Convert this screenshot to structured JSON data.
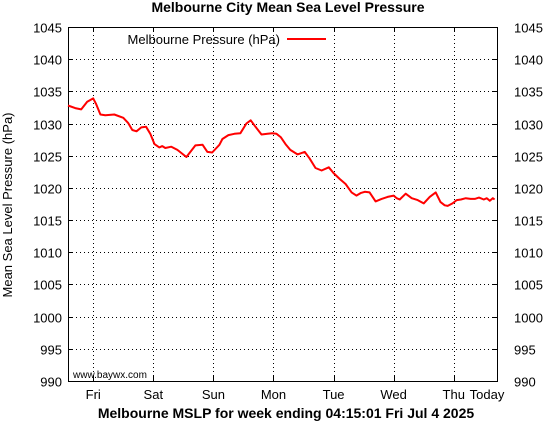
{
  "chart_data": {
    "type": "line",
    "title": "Melbourne City Mean Sea Level Pressure",
    "xlabel": "Melbourne MSLP for week ending 04:15:01 Fri Jul 4 2025",
    "ylabel": "Mean Sea Level Pressure (hPa)",
    "credit": "www.baywx.com",
    "ylim": [
      990,
      1045
    ],
    "xlim": [
      -0.42,
      6.72
    ],
    "grid": true,
    "legend_position": "top-left",
    "x_ticks": [
      {
        "label": "Fri",
        "x": 0
      },
      {
        "label": "Sat",
        "x": 1
      },
      {
        "label": "Sun",
        "x": 2
      },
      {
        "label": "Mon",
        "x": 3
      },
      {
        "label": "Tue",
        "x": 4
      },
      {
        "label": "Wed",
        "x": 5
      },
      {
        "label": "Thu",
        "x": 6
      },
      {
        "label": "Today",
        "x": 7
      }
    ],
    "y_ticks": [
      990,
      995,
      1000,
      1005,
      1010,
      1015,
      1020,
      1025,
      1030,
      1035,
      1040,
      1045
    ],
    "series": [
      {
        "name": "Melbourne Pressure (hPa)",
        "color": "#ff0000",
        "x": [
          -0.42,
          -0.3,
          -0.2,
          -0.1,
          0.0,
          0.05,
          0.12,
          0.2,
          0.35,
          0.5,
          0.58,
          0.65,
          0.72,
          0.8,
          0.88,
          0.95,
          1.02,
          1.1,
          1.15,
          1.2,
          1.3,
          1.4,
          1.55,
          1.7,
          1.82,
          1.9,
          1.98,
          2.05,
          2.1,
          2.15,
          2.25,
          2.35,
          2.45,
          2.55,
          2.62,
          2.7,
          2.8,
          2.9,
          2.98,
          3.05,
          3.12,
          3.2,
          3.28,
          3.4,
          3.52,
          3.6,
          3.7,
          3.8,
          3.92,
          4.0,
          4.1,
          4.2,
          4.3,
          4.38,
          4.45,
          4.52,
          4.6,
          4.7,
          4.8,
          4.9,
          5.0,
          5.05,
          5.1,
          5.2,
          5.3,
          5.4,
          5.5,
          5.6,
          5.7,
          5.78,
          5.85,
          5.9,
          5.98,
          6.05,
          6.12,
          6.2,
          6.28,
          6.35,
          6.42,
          6.5,
          6.55,
          6.6,
          6.65,
          6.68
        ],
        "values": [
          1032.8,
          1032.4,
          1032.2,
          1033.4,
          1033.9,
          1033.0,
          1031.4,
          1031.3,
          1031.4,
          1030.9,
          1030.1,
          1029.0,
          1028.8,
          1029.4,
          1029.5,
          1028.4,
          1026.8,
          1026.3,
          1026.5,
          1026.2,
          1026.4,
          1025.9,
          1024.8,
          1026.6,
          1026.7,
          1025.6,
          1025.5,
          1026.2,
          1026.7,
          1027.6,
          1028.2,
          1028.4,
          1028.5,
          1030.0,
          1030.5,
          1029.5,
          1028.3,
          1028.4,
          1028.5,
          1028.4,
          1027.9,
          1026.8,
          1025.9,
          1025.2,
          1025.6,
          1024.6,
          1023.1,
          1022.7,
          1023.2,
          1022.3,
          1021.4,
          1020.6,
          1019.3,
          1018.8,
          1019.2,
          1019.4,
          1019.3,
          1017.9,
          1018.3,
          1018.6,
          1018.8,
          1018.4,
          1018.2,
          1019.1,
          1018.4,
          1018.1,
          1017.6,
          1018.6,
          1019.3,
          1017.8,
          1017.3,
          1017.2,
          1017.6,
          1018.1,
          1018.2,
          1018.4,
          1018.3,
          1018.3,
          1018.5,
          1018.2,
          1018.4,
          1018.0,
          1018.4,
          1018.2
        ]
      }
    ]
  }
}
